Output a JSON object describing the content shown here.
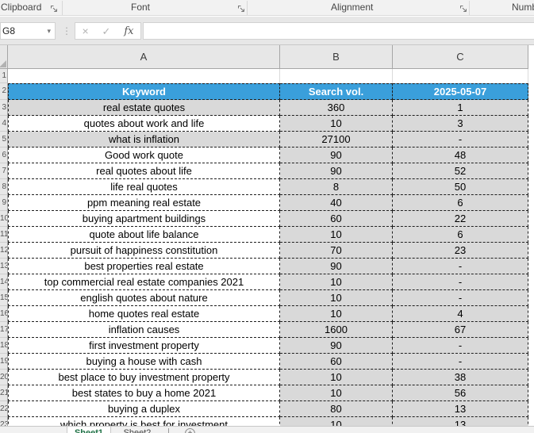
{
  "ribbon": {
    "groups": [
      {
        "label": "Clipboard"
      },
      {
        "label": "Font"
      },
      {
        "label": "Alignment"
      },
      {
        "label": "Number"
      }
    ]
  },
  "formula_bar": {
    "name_box_value": "G8",
    "formula_value": ""
  },
  "icons": {
    "name_box_dropdown": "▾",
    "cancel": "×",
    "enter": "✓",
    "function": "fx",
    "grip": "⋮",
    "add_sheet": "+"
  },
  "sheet": {
    "column_headers": [
      "A",
      "B",
      "C"
    ],
    "blank_row_number": "1",
    "header_row": {
      "row_number": "2",
      "cells": [
        "Keyword",
        "Search vol.",
        "2025-05-07"
      ]
    },
    "first_data_row_number": 3,
    "colors": {
      "header_bg": "#3A9FDB",
      "header_text": "#FFFFFF",
      "shaded_fill": "#D9D9D9"
    },
    "rows": [
      {
        "keyword": "real estate quotes",
        "search_vol": "360",
        "value": "1",
        "keyword_shaded": true
      },
      {
        "keyword": "quotes about work and life",
        "search_vol": "10",
        "value": "3",
        "keyword_shaded": false
      },
      {
        "keyword": "what is inflation",
        "search_vol": "27100",
        "value": "-",
        "keyword_shaded": true
      },
      {
        "keyword": "Good work quote",
        "search_vol": "90",
        "value": "48",
        "keyword_shaded": false
      },
      {
        "keyword": "real quotes about life",
        "search_vol": "90",
        "value": "52",
        "keyword_shaded": false
      },
      {
        "keyword": "life real quotes",
        "search_vol": "8",
        "value": "50",
        "keyword_shaded": false
      },
      {
        "keyword": "ppm meaning real estate",
        "search_vol": "40",
        "value": "6",
        "keyword_shaded": false
      },
      {
        "keyword": "buying apartment buildings",
        "search_vol": "60",
        "value": "22",
        "keyword_shaded": false
      },
      {
        "keyword": "quote about life balance",
        "search_vol": "10",
        "value": "6",
        "keyword_shaded": false
      },
      {
        "keyword": "pursuit of happiness constitution",
        "search_vol": "70",
        "value": "23",
        "keyword_shaded": false
      },
      {
        "keyword": "best properties real estate",
        "search_vol": "90",
        "value": "-",
        "keyword_shaded": false
      },
      {
        "keyword": "top commercial real estate companies 2021",
        "search_vol": "10",
        "value": "-",
        "keyword_shaded": false
      },
      {
        "keyword": "english quotes about nature",
        "search_vol": "10",
        "value": "-",
        "keyword_shaded": false
      },
      {
        "keyword": "home quotes real estate",
        "search_vol": "10",
        "value": "4",
        "keyword_shaded": false
      },
      {
        "keyword": "inflation causes",
        "search_vol": "1600",
        "value": "67",
        "keyword_shaded": false
      },
      {
        "keyword": "first investment property",
        "search_vol": "90",
        "value": "-",
        "keyword_shaded": false
      },
      {
        "keyword": "buying a house with cash",
        "search_vol": "60",
        "value": "-",
        "keyword_shaded": false
      },
      {
        "keyword": "best place to buy investment property",
        "search_vol": "10",
        "value": "38",
        "keyword_shaded": false
      },
      {
        "keyword": "best states to buy a home 2021",
        "search_vol": "10",
        "value": "56",
        "keyword_shaded": false
      },
      {
        "keyword": "buying a duplex",
        "search_vol": "80",
        "value": "13",
        "keyword_shaded": false
      },
      {
        "keyword": "which property is best for investment",
        "search_vol": "10",
        "value": "13",
        "keyword_shaded": false
      }
    ]
  },
  "tab_bar": {
    "tabs": [
      {
        "label": "Sheet1",
        "active": true
      },
      {
        "label": "Sheet2",
        "active": false
      }
    ]
  }
}
